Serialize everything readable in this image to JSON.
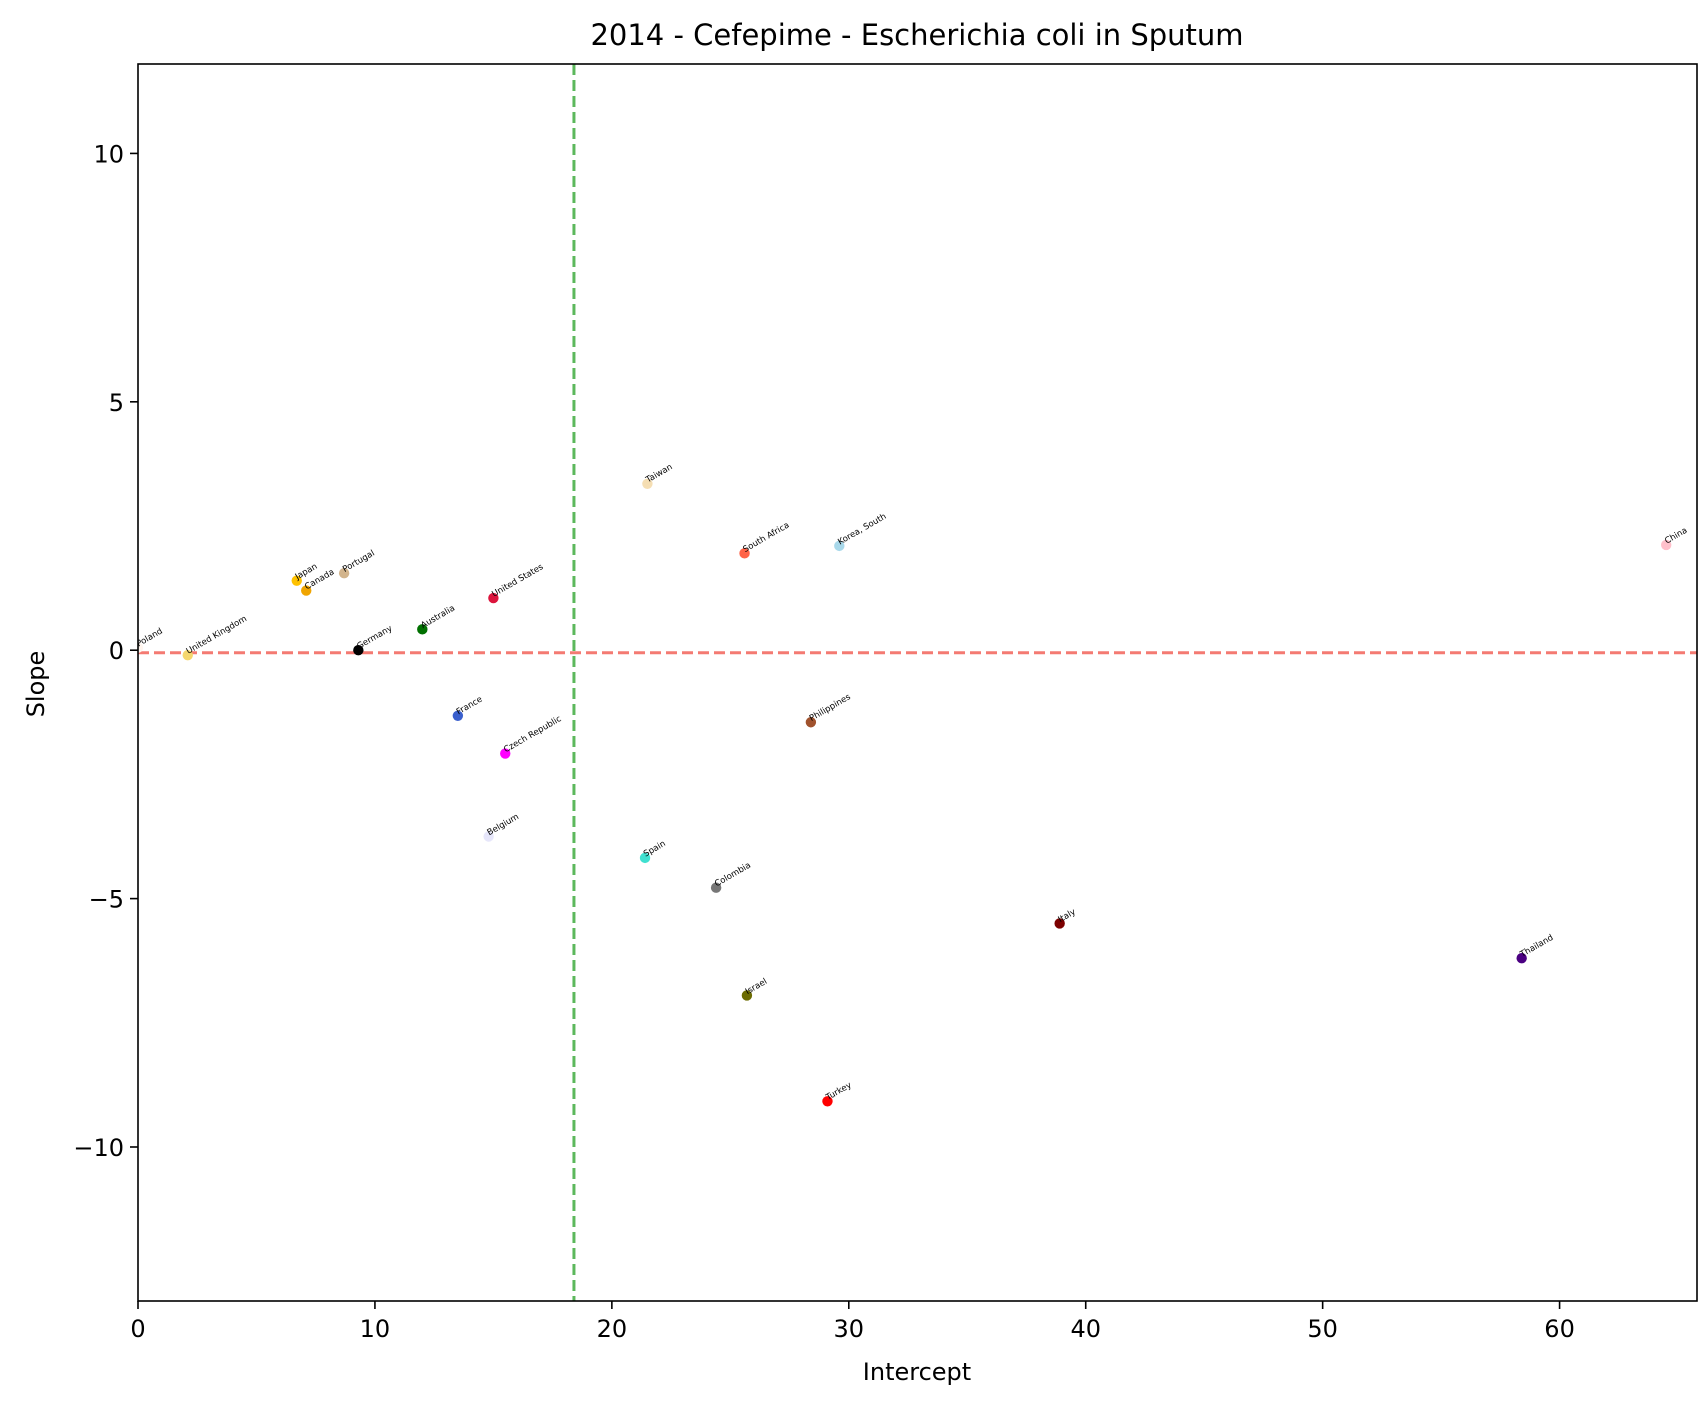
{
  "chart_data": {
    "type": "scatter",
    "title": "2014 - Cefepime - Escherichia coli in Sputum",
    "xlabel": "Intercept",
    "ylabel": "Slope",
    "xlim": [
      0,
      65.8
    ],
    "ylim": [
      -13.1,
      11.8
    ],
    "xticks": [
      0,
      10,
      20,
      30,
      40,
      50,
      60
    ],
    "yticks": [
      10,
      5,
      0,
      -5,
      -10
    ],
    "ytick_labels": [
      "10",
      "5",
      "0",
      "−5",
      "−10"
    ],
    "grid": false,
    "reference_lines": [
      {
        "orientation": "vertical",
        "value": 18.4,
        "color": "#5cb85c",
        "style": "dashed"
      },
      {
        "orientation": "horizontal",
        "value": -0.05,
        "color": "#f47a72",
        "style": "dashed"
      }
    ],
    "points": [
      {
        "label": "Poland",
        "x": 0.0,
        "y": 0.05,
        "color": "#fff5ee"
      },
      {
        "label": "United Kingdom",
        "x": 2.1,
        "y": -0.1,
        "color": "#f5d76e"
      },
      {
        "label": "Japan",
        "x": 6.7,
        "y": 1.4,
        "color": "#ffc200"
      },
      {
        "label": "Canada",
        "x": 7.1,
        "y": 1.2,
        "color": "#f0a500"
      },
      {
        "label": "Portugal",
        "x": 8.7,
        "y": 1.55,
        "color": "#d2b48c"
      },
      {
        "label": "Germany",
        "x": 9.3,
        "y": 0.0,
        "color": "#000000"
      },
      {
        "label": "Australia",
        "x": 12.0,
        "y": 0.42,
        "color": "#007000"
      },
      {
        "label": "United States",
        "x": 15.0,
        "y": 1.05,
        "color": "#dc143c"
      },
      {
        "label": "France",
        "x": 13.5,
        "y": -1.32,
        "color": "#3a5fcd"
      },
      {
        "label": "Czech Republic",
        "x": 15.5,
        "y": -2.08,
        "color": "#ff00ff"
      },
      {
        "label": "Belgium",
        "x": 14.8,
        "y": -3.75,
        "color": "#e6e6fa"
      },
      {
        "label": "Taiwan",
        "x": 21.5,
        "y": 3.35,
        "color": "#f5deb3"
      },
      {
        "label": "Spain",
        "x": 21.4,
        "y": -4.18,
        "color": "#40e0d0"
      },
      {
        "label": "South Africa",
        "x": 25.6,
        "y": 1.95,
        "color": "#ff6347"
      },
      {
        "label": "Colombia",
        "x": 24.4,
        "y": -4.78,
        "color": "#777777"
      },
      {
        "label": "Israel",
        "x": 25.7,
        "y": -6.95,
        "color": "#6b6b00"
      },
      {
        "label": "Philippines",
        "x": 28.4,
        "y": -1.45,
        "color": "#a0522d"
      },
      {
        "label": "Korea, South",
        "x": 29.6,
        "y": 2.1,
        "color": "#a8d8ea"
      },
      {
        "label": "Turkey",
        "x": 29.1,
        "y": -9.08,
        "color": "#ff0000"
      },
      {
        "label": "Italy",
        "x": 38.9,
        "y": -5.5,
        "color": "#7b0000"
      },
      {
        "label": "Thailand",
        "x": 58.4,
        "y": -6.2,
        "color": "#4b0082"
      },
      {
        "label": "China",
        "x": 64.5,
        "y": 2.12,
        "color": "#ffc0cb"
      }
    ]
  }
}
